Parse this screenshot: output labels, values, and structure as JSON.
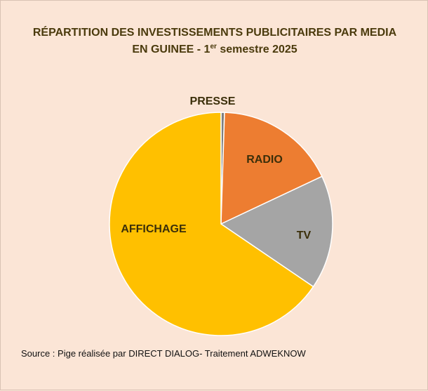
{
  "title": {
    "line1": "RÉPARTITION DES INVESTISSEMENTS PUBLICITAIRES PAR MEDIA",
    "line2_prefix": "EN GUINEE - 1",
    "line2_sup": "er",
    "line2_suffix": " semestre 2025"
  },
  "source": "Source : Pige réalisée par DIRECT DIALOG- Traitement ADWEKNOW",
  "chart_data": {
    "type": "pie",
    "title": "RÉPARTITION DES INVESTISSEMENTS PUBLICITAIRES PAR MEDIA EN GUINEE - 1er semestre 2025",
    "categories": [
      "PRESSE",
      "RADIO",
      "TV",
      "AFFICHAGE"
    ],
    "values": [
      0.5,
      17.5,
      16.5,
      65.5
    ],
    "unit": "%",
    "colors": [
      "#7f7f7f",
      "#ed7d31",
      "#a5a5a5",
      "#ffc000"
    ],
    "legend": "none",
    "labels_on_chart": true
  }
}
